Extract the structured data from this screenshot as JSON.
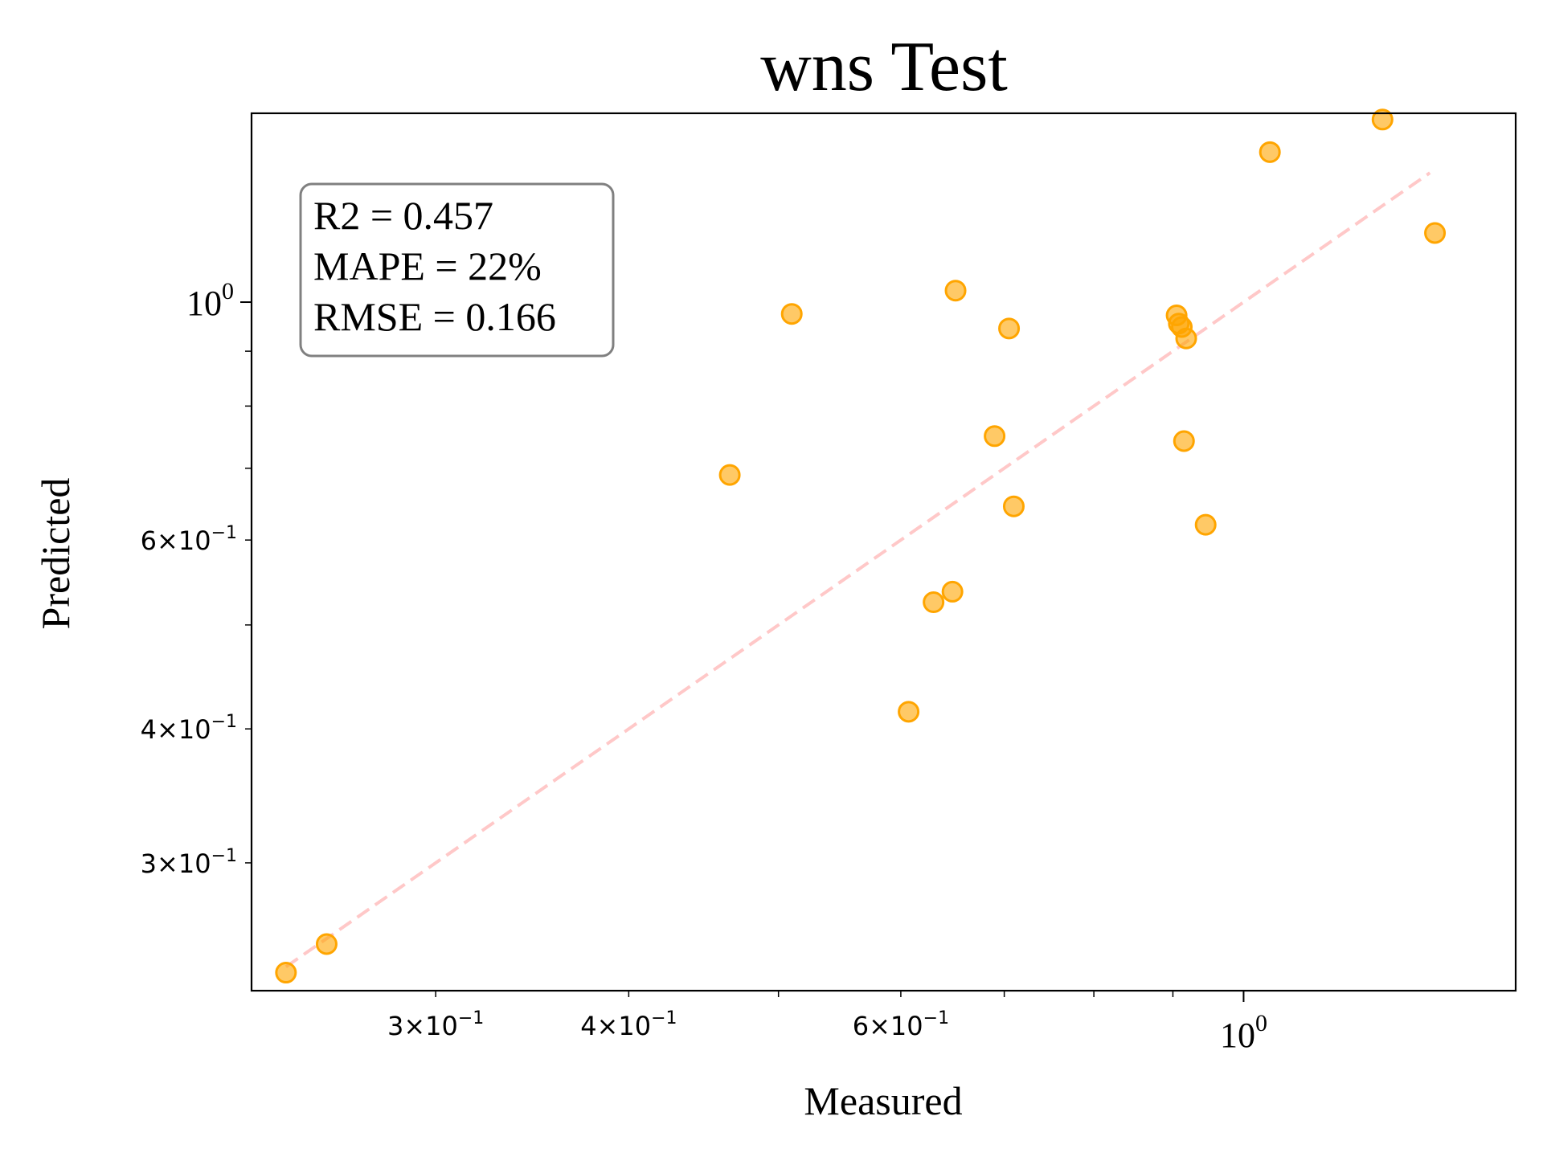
{
  "chart_data": {
    "type": "scatter",
    "title": "wns Test",
    "xlabel": "Measured",
    "ylabel": "Predicted",
    "xscale": "log",
    "yscale": "log",
    "xlim": [
      0.228,
      1.5
    ],
    "ylim": [
      0.228,
      1.5
    ],
    "grid": false,
    "x_major_ticks": [
      {
        "value": 1.0,
        "label_base": "10",
        "label_exp": "0"
      }
    ],
    "x_minor_ticks": [
      {
        "value": 0.3,
        "label_mant": "3",
        "label_base": "10",
        "label_exp": "−1"
      },
      {
        "value": 0.4,
        "label_mant": "4",
        "label_base": "10",
        "label_exp": "−1"
      },
      {
        "value": 0.5
      },
      {
        "value": 0.6,
        "label_mant": "6",
        "label_base": "10",
        "label_exp": "−1"
      },
      {
        "value": 0.7
      },
      {
        "value": 0.8
      },
      {
        "value": 0.9
      }
    ],
    "y_major_ticks": [
      {
        "value": 1.0,
        "label_base": "10",
        "label_exp": "0"
      }
    ],
    "y_minor_ticks": [
      {
        "value": 0.3,
        "label_mant": "3",
        "label_base": "10",
        "label_exp": "−1"
      },
      {
        "value": 0.4,
        "label_mant": "4",
        "label_base": "10",
        "label_exp": "−1"
      },
      {
        "value": 0.5
      },
      {
        "value": 0.6,
        "label_mant": "6",
        "label_base": "10",
        "label_exp": "−1"
      },
      {
        "value": 0.7
      },
      {
        "value": 0.8
      },
      {
        "value": 0.9
      }
    ],
    "series": [
      {
        "color": "#FFA500",
        "marker": "circle",
        "points": [
          {
            "x": 0.24,
            "y": 0.237
          },
          {
            "x": 0.255,
            "y": 0.252
          },
          {
            "x": 0.465,
            "y": 0.69
          },
          {
            "x": 0.51,
            "y": 0.975
          },
          {
            "x": 0.607,
            "y": 0.415
          },
          {
            "x": 0.63,
            "y": 0.525
          },
          {
            "x": 0.648,
            "y": 0.537
          },
          {
            "x": 0.651,
            "y": 1.025
          },
          {
            "x": 0.69,
            "y": 0.75
          },
          {
            "x": 0.705,
            "y": 0.945
          },
          {
            "x": 0.71,
            "y": 0.645
          },
          {
            "x": 0.905,
            "y": 0.972
          },
          {
            "x": 0.908,
            "y": 0.955
          },
          {
            "x": 0.912,
            "y": 0.948
          },
          {
            "x": 0.915,
            "y": 0.742
          },
          {
            "x": 0.918,
            "y": 0.925
          },
          {
            "x": 0.945,
            "y": 0.62
          },
          {
            "x": 1.04,
            "y": 1.38
          },
          {
            "x": 1.23,
            "y": 1.48
          },
          {
            "x": 1.33,
            "y": 1.16
          }
        ]
      }
    ],
    "reference_line": {
      "style": "dashed",
      "color": "#FFC8C8",
      "from": [
        0.24,
        0.24
      ],
      "to": [
        1.32,
        1.32
      ]
    },
    "annotation": {
      "lines": [
        "R2 = 0.457",
        "MAPE = 22%",
        "RMSE = 0.166"
      ],
      "placement": "top-left"
    }
  }
}
